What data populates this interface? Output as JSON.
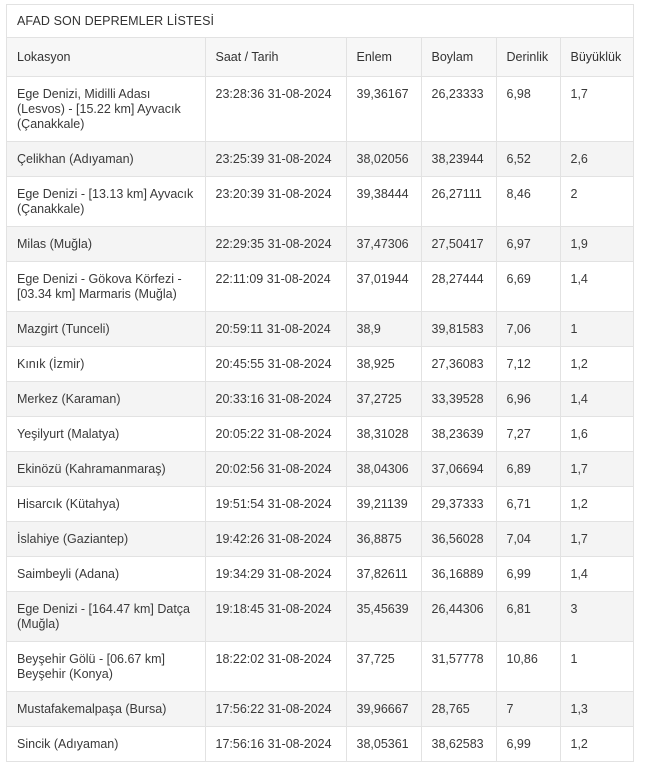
{
  "title": "AFAD SON DEPREMLER LİSTESİ",
  "columns": [
    "Lokasyon",
    "Saat / Tarih",
    "Enlem",
    "Boylam",
    "Derinlik",
    "Büyüklük"
  ],
  "rows": [
    {
      "lokasyon": "Ege Denizi, Midilli Adası (Lesvos) - [15.22 km] Ayvacık (Çanakkale)",
      "saat": "23:28:36 31-08-2024",
      "enlem": "39,36167",
      "boylam": "26,23333",
      "derinlik": "6,98",
      "buyukluk": "1,7"
    },
    {
      "lokasyon": "Çelikhan (Adıyaman)",
      "saat": "23:25:39 31-08-2024",
      "enlem": "38,02056",
      "boylam": "38,23944",
      "derinlik": "6,52",
      "buyukluk": "2,6"
    },
    {
      "lokasyon": "Ege Denizi - [13.13 km] Ayvacık (Çanakkale)",
      "saat": "23:20:39 31-08-2024",
      "enlem": "39,38444",
      "boylam": "26,27111",
      "derinlik": "8,46",
      "buyukluk": "2"
    },
    {
      "lokasyon": "Milas (Muğla)",
      "saat": "22:29:35 31-08-2024",
      "enlem": "37,47306",
      "boylam": "27,50417",
      "derinlik": "6,97",
      "buyukluk": "1,9"
    },
    {
      "lokasyon": "Ege Denizi - Gökova Körfezi - [03.34 km] Marmaris (Muğla)",
      "saat": "22:11:09 31-08-2024",
      "enlem": "37,01944",
      "boylam": "28,27444",
      "derinlik": "6,69",
      "buyukluk": "1,4"
    },
    {
      "lokasyon": "Mazgirt (Tunceli)",
      "saat": "20:59:11 31-08-2024",
      "enlem": "38,9",
      "boylam": "39,81583",
      "derinlik": "7,06",
      "buyukluk": "1"
    },
    {
      "lokasyon": "Kınık (İzmir)",
      "saat": "20:45:55 31-08-2024",
      "enlem": "38,925",
      "boylam": "27,36083",
      "derinlik": "7,12",
      "buyukluk": "1,2"
    },
    {
      "lokasyon": "Merkez (Karaman)",
      "saat": "20:33:16 31-08-2024",
      "enlem": "37,2725",
      "boylam": "33,39528",
      "derinlik": "6,96",
      "buyukluk": "1,4"
    },
    {
      "lokasyon": "Yeşilyurt (Malatya)",
      "saat": "20:05:22 31-08-2024",
      "enlem": "38,31028",
      "boylam": "38,23639",
      "derinlik": "7,27",
      "buyukluk": "1,6"
    },
    {
      "lokasyon": "Ekinözü (Kahramanmaraş)",
      "saat": "20:02:56 31-08-2024",
      "enlem": "38,04306",
      "boylam": "37,06694",
      "derinlik": "6,89",
      "buyukluk": "1,7"
    },
    {
      "lokasyon": "Hisarcık (Kütahya)",
      "saat": "19:51:54 31-08-2024",
      "enlem": "39,21139",
      "boylam": "29,37333",
      "derinlik": "6,71",
      "buyukluk": "1,2"
    },
    {
      "lokasyon": "İslahiye (Gaziantep)",
      "saat": "19:42:26 31-08-2024",
      "enlem": "36,8875",
      "boylam": "36,56028",
      "derinlik": "7,04",
      "buyukluk": "1,7"
    },
    {
      "lokasyon": "Saimbeyli (Adana)",
      "saat": "19:34:29 31-08-2024",
      "enlem": "37,82611",
      "boylam": "36,16889",
      "derinlik": "6,99",
      "buyukluk": "1,4"
    },
    {
      "lokasyon": "Ege Denizi - [164.47 km] Datça (Muğla)",
      "saat": "19:18:45 31-08-2024",
      "enlem": "35,45639",
      "boylam": "26,44306",
      "derinlik": "6,81",
      "buyukluk": "3"
    },
    {
      "lokasyon": "Beyşehir Gölü - [06.67 km] Beyşehir (Konya)",
      "saat": "18:22:02 31-08-2024",
      "enlem": "37,725",
      "boylam": "31,57778",
      "derinlik": "10,86",
      "buyukluk": "1"
    },
    {
      "lokasyon": "Mustafakemalpaşa (Bursa)",
      "saat": "17:56:22 31-08-2024",
      "enlem": "39,96667",
      "boylam": "28,765",
      "derinlik": "7",
      "buyukluk": "1,3"
    },
    {
      "lokasyon": "Sincik (Adıyaman)",
      "saat": "17:56:16 31-08-2024",
      "enlem": "38,05361",
      "boylam": "38,62583",
      "derinlik": "6,99",
      "buyukluk": "1,2"
    }
  ]
}
